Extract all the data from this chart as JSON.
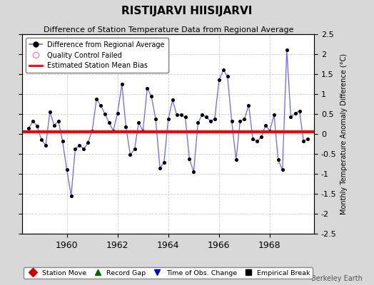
{
  "title": "RISTIJARVI HIISIJARVI",
  "subtitle": "Difference of Station Temperature Data from Regional Average",
  "ylabel": "Monthly Temperature Anomaly Difference (°C)",
  "xlabel_years": [
    1960,
    1962,
    1964,
    1966,
    1968
  ],
  "ylim": [
    -2.5,
    2.5
  ],
  "yticks": [
    -2.5,
    -2,
    -1.5,
    -1,
    -0.5,
    0,
    0.5,
    1,
    1.5,
    2,
    2.5
  ],
  "bias": 0.05,
  "fig_bg_color": "#d8d8d8",
  "plot_bg_color": "#ffffff",
  "line_color": "#6666ff",
  "marker_color": "#000000",
  "bias_color": "#ff0000",
  "watermark": "Berkeley Earth",
  "x_start_year": 1958.25,
  "x_end_year": 1969.75,
  "data": [
    [
      1958.5,
      0.15
    ],
    [
      1958.67,
      0.32
    ],
    [
      1958.83,
      0.2
    ],
    [
      1959.0,
      -0.15
    ],
    [
      1959.17,
      -0.28
    ],
    [
      1959.33,
      0.55
    ],
    [
      1959.5,
      0.22
    ],
    [
      1959.67,
      0.32
    ],
    [
      1959.83,
      -0.18
    ],
    [
      1960.0,
      -0.9
    ],
    [
      1960.17,
      -1.55
    ],
    [
      1960.33,
      -0.38
    ],
    [
      1960.5,
      -0.28
    ],
    [
      1960.67,
      -0.38
    ],
    [
      1960.83,
      -0.22
    ],
    [
      1961.0,
      0.08
    ],
    [
      1961.17,
      0.88
    ],
    [
      1961.33,
      0.72
    ],
    [
      1961.5,
      0.5
    ],
    [
      1961.67,
      0.28
    ],
    [
      1961.83,
      0.08
    ],
    [
      1962.0,
      0.52
    ],
    [
      1962.17,
      1.25
    ],
    [
      1962.33,
      0.18
    ],
    [
      1962.5,
      -0.52
    ],
    [
      1962.67,
      -0.38
    ],
    [
      1962.83,
      0.28
    ],
    [
      1963.0,
      0.08
    ],
    [
      1963.17,
      1.15
    ],
    [
      1963.33,
      0.95
    ],
    [
      1963.5,
      0.38
    ],
    [
      1963.67,
      -0.85
    ],
    [
      1963.83,
      -0.72
    ],
    [
      1964.0,
      0.38
    ],
    [
      1964.17,
      0.85
    ],
    [
      1964.33,
      0.48
    ],
    [
      1964.5,
      0.48
    ],
    [
      1964.67,
      0.42
    ],
    [
      1964.83,
      -0.62
    ],
    [
      1965.0,
      -0.95
    ],
    [
      1965.17,
      0.28
    ],
    [
      1965.33,
      0.48
    ],
    [
      1965.5,
      0.42
    ],
    [
      1965.67,
      0.32
    ],
    [
      1965.83,
      0.38
    ],
    [
      1966.0,
      1.35
    ],
    [
      1966.17,
      1.6
    ],
    [
      1966.33,
      1.45
    ],
    [
      1966.5,
      0.32
    ],
    [
      1966.67,
      -0.65
    ],
    [
      1966.83,
      0.32
    ],
    [
      1967.0,
      0.38
    ],
    [
      1967.17,
      0.72
    ],
    [
      1967.33,
      -0.12
    ],
    [
      1967.5,
      -0.18
    ],
    [
      1967.67,
      -0.08
    ],
    [
      1967.83,
      0.22
    ],
    [
      1968.0,
      0.08
    ],
    [
      1968.17,
      0.48
    ],
    [
      1968.33,
      -0.65
    ],
    [
      1968.5,
      -0.9
    ],
    [
      1968.67,
      2.1
    ],
    [
      1968.83,
      0.42
    ],
    [
      1969.0,
      0.52
    ],
    [
      1969.17,
      0.58
    ],
    [
      1969.33,
      -0.18
    ],
    [
      1969.5,
      -0.12
    ]
  ]
}
